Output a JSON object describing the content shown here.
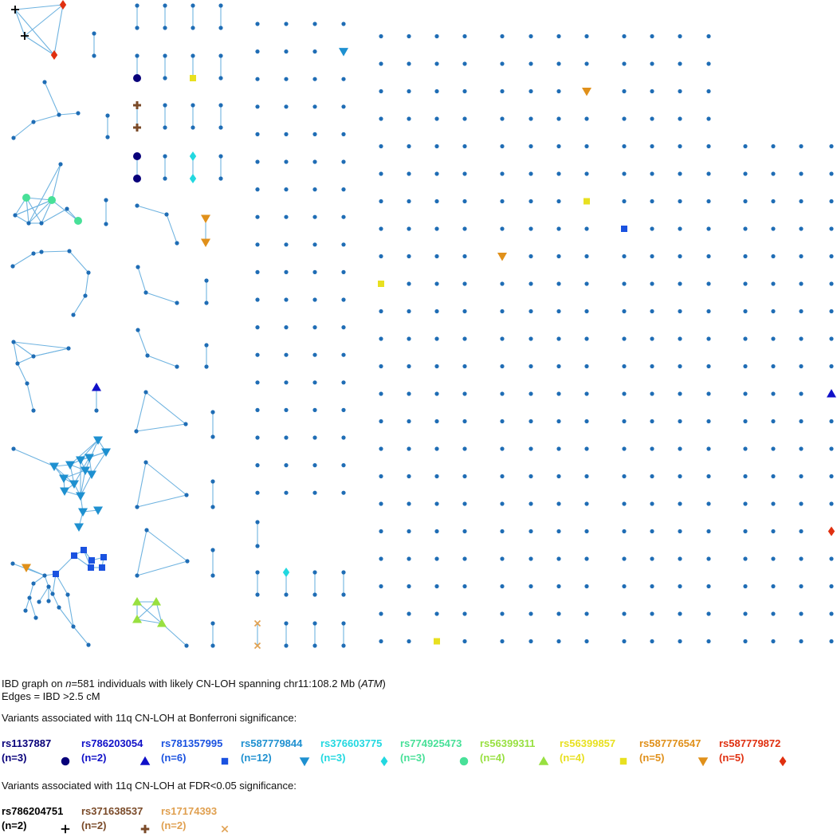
{
  "caption": {
    "line1_prefix": "IBD graph on ",
    "line1_n": "n",
    "line1_mid": "=581 individuals with likely CN-LOH spanning chr11:108.2 Mb (",
    "line1_gene": "ATM",
    "line1_end": ")",
    "line2": "Edges = IBD >2.5 cM",
    "bonferroni_heading": "Variants associated with 11q CN-LOH at Bonferroni significance:",
    "fdr_heading": "Variants associated with 11q CN-LOH at FDR<0.05 significance:"
  },
  "colors": {
    "node": "#1f6db5",
    "edge": "#6fb3e0"
  },
  "bonferroni_variants": [
    {
      "id": "rs1137887",
      "n": "(n=3)",
      "color": "#08007a",
      "shape": "circle"
    },
    {
      "id": "rs786203054",
      "n": "(n=2)",
      "color": "#1010c8",
      "shape": "triangle-up"
    },
    {
      "id": "rs781357995",
      "n": "(n=6)",
      "color": "#1a52e0",
      "shape": "square"
    },
    {
      "id": "rs587779844",
      "n": "(n=12)",
      "color": "#1e90d0",
      "shape": "triangle-down"
    },
    {
      "id": "rs376603775",
      "n": "(n=3)",
      "color": "#22d8e0",
      "shape": "diamond"
    },
    {
      "id": "rs774925473",
      "n": "(n=3)",
      "color": "#48e098",
      "shape": "circle"
    },
    {
      "id": "rs56399311",
      "n": "(n=4)",
      "color": "#98e040",
      "shape": "triangle-up"
    },
    {
      "id": "rs56399857",
      "n": "(n=4)",
      "color": "#e8e020",
      "shape": "square"
    },
    {
      "id": "rs587776547",
      "n": "(n=5)",
      "color": "#e0901a",
      "shape": "triangle-down"
    },
    {
      "id": "rs587779872",
      "n": "(n=5)",
      "color": "#e03010",
      "shape": "diamond"
    }
  ],
  "fdr_variants": [
    {
      "id": "rs786204751",
      "n": "(n=2)",
      "color": "#000000",
      "shape": "plus"
    },
    {
      "id": "rs371638537",
      "n": "(n=2)",
      "color": "#7a4a28",
      "shape": "plus-thick"
    },
    {
      "id": "rs17174393",
      "n": "(n=2)",
      "color": "#e0a050",
      "shape": "cross"
    }
  ]
}
